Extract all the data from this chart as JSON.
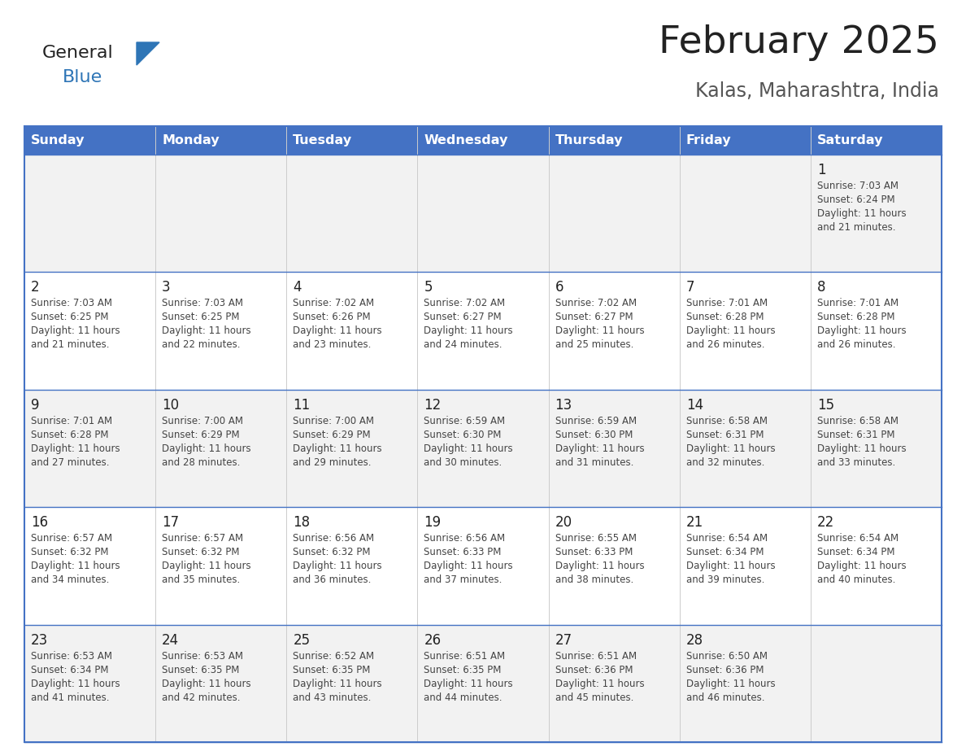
{
  "title": "February 2025",
  "subtitle": "Kalas, Maharashtra, India",
  "header_bg_color": "#4472C4",
  "header_text_color": "#FFFFFF",
  "border_color": "#4472C4",
  "row_colors": [
    "#F2F2F2",
    "#FFFFFF"
  ],
  "title_color": "#222222",
  "subtitle_color": "#555555",
  "day_number_color": "#222222",
  "cell_text_color": "#444444",
  "days_of_week": [
    "Sunday",
    "Monday",
    "Tuesday",
    "Wednesday",
    "Thursday",
    "Friday",
    "Saturday"
  ],
  "weeks": [
    [
      null,
      null,
      null,
      null,
      null,
      null,
      1
    ],
    [
      2,
      3,
      4,
      5,
      6,
      7,
      8
    ],
    [
      9,
      10,
      11,
      12,
      13,
      14,
      15
    ],
    [
      16,
      17,
      18,
      19,
      20,
      21,
      22
    ],
    [
      23,
      24,
      25,
      26,
      27,
      28,
      null
    ]
  ],
  "cell_data": {
    "1": {
      "sunrise": "7:03 AM",
      "sunset": "6:24 PM",
      "daylight": "11 hours and 21 minutes."
    },
    "2": {
      "sunrise": "7:03 AM",
      "sunset": "6:25 PM",
      "daylight": "11 hours and 21 minutes."
    },
    "3": {
      "sunrise": "7:03 AM",
      "sunset": "6:25 PM",
      "daylight": "11 hours and 22 minutes."
    },
    "4": {
      "sunrise": "7:02 AM",
      "sunset": "6:26 PM",
      "daylight": "11 hours and 23 minutes."
    },
    "5": {
      "sunrise": "7:02 AM",
      "sunset": "6:27 PM",
      "daylight": "11 hours and 24 minutes."
    },
    "6": {
      "sunrise": "7:02 AM",
      "sunset": "6:27 PM",
      "daylight": "11 hours and 25 minutes."
    },
    "7": {
      "sunrise": "7:01 AM",
      "sunset": "6:28 PM",
      "daylight": "11 hours and 26 minutes."
    },
    "8": {
      "sunrise": "7:01 AM",
      "sunset": "6:28 PM",
      "daylight": "11 hours and 26 minutes."
    },
    "9": {
      "sunrise": "7:01 AM",
      "sunset": "6:28 PM",
      "daylight": "11 hours and 27 minutes."
    },
    "10": {
      "sunrise": "7:00 AM",
      "sunset": "6:29 PM",
      "daylight": "11 hours and 28 minutes."
    },
    "11": {
      "sunrise": "7:00 AM",
      "sunset": "6:29 PM",
      "daylight": "11 hours and 29 minutes."
    },
    "12": {
      "sunrise": "6:59 AM",
      "sunset": "6:30 PM",
      "daylight": "11 hours and 30 minutes."
    },
    "13": {
      "sunrise": "6:59 AM",
      "sunset": "6:30 PM",
      "daylight": "11 hours and 31 minutes."
    },
    "14": {
      "sunrise": "6:58 AM",
      "sunset": "6:31 PM",
      "daylight": "11 hours and 32 minutes."
    },
    "15": {
      "sunrise": "6:58 AM",
      "sunset": "6:31 PM",
      "daylight": "11 hours and 33 minutes."
    },
    "16": {
      "sunrise": "6:57 AM",
      "sunset": "6:32 PM",
      "daylight": "11 hours and 34 minutes."
    },
    "17": {
      "sunrise": "6:57 AM",
      "sunset": "6:32 PM",
      "daylight": "11 hours and 35 minutes."
    },
    "18": {
      "sunrise": "6:56 AM",
      "sunset": "6:32 PM",
      "daylight": "11 hours and 36 minutes."
    },
    "19": {
      "sunrise": "6:56 AM",
      "sunset": "6:33 PM",
      "daylight": "11 hours and 37 minutes."
    },
    "20": {
      "sunrise": "6:55 AM",
      "sunset": "6:33 PM",
      "daylight": "11 hours and 38 minutes."
    },
    "21": {
      "sunrise": "6:54 AM",
      "sunset": "6:34 PM",
      "daylight": "11 hours and 39 minutes."
    },
    "22": {
      "sunrise": "6:54 AM",
      "sunset": "6:34 PM",
      "daylight": "11 hours and 40 minutes."
    },
    "23": {
      "sunrise": "6:53 AM",
      "sunset": "6:34 PM",
      "daylight": "11 hours and 41 minutes."
    },
    "24": {
      "sunrise": "6:53 AM",
      "sunset": "6:35 PM",
      "daylight": "11 hours and 42 minutes."
    },
    "25": {
      "sunrise": "6:52 AM",
      "sunset": "6:35 PM",
      "daylight": "11 hours and 43 minutes."
    },
    "26": {
      "sunrise": "6:51 AM",
      "sunset": "6:35 PM",
      "daylight": "11 hours and 44 minutes."
    },
    "27": {
      "sunrise": "6:51 AM",
      "sunset": "6:36 PM",
      "daylight": "11 hours and 45 minutes."
    },
    "28": {
      "sunrise": "6:50 AM",
      "sunset": "6:36 PM",
      "daylight": "11 hours and 46 minutes."
    }
  },
  "logo_general_color": "#222222",
  "logo_blue_color": "#2E75B6",
  "logo_triangle_color": "#2E75B6",
  "fig_width": 11.88,
  "fig_height": 9.18,
  "fig_dpi": 100
}
